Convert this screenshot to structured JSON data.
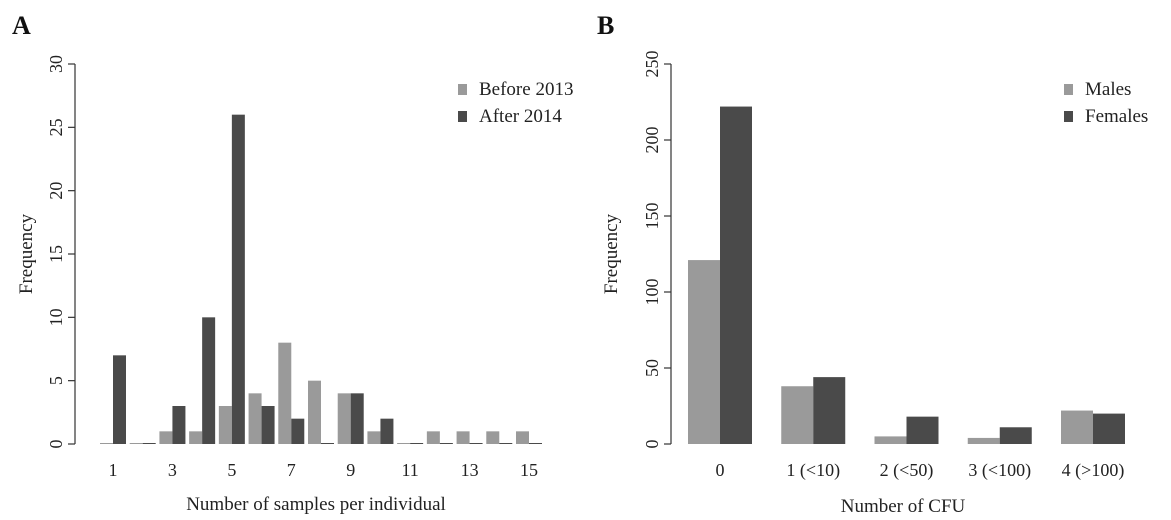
{
  "chart_data": [
    {
      "panel": "A",
      "type": "bar",
      "xlabel": "Number of samples per individual",
      "ylabel": "Frequency",
      "ylim": [
        0,
        30
      ],
      "yticks": [
        0,
        5,
        10,
        15,
        20,
        25,
        30
      ],
      "categories": [
        "1",
        "2",
        "3",
        "4",
        "5",
        "6",
        "7",
        "8",
        "9",
        "10",
        "11",
        "12",
        "13",
        "14",
        "15"
      ],
      "xtick_labels": [
        "1",
        "",
        "3",
        "",
        "5",
        "",
        "7",
        "",
        "9",
        "",
        "11",
        "",
        "13",
        "",
        "15"
      ],
      "series": [
        {
          "name": "Before 2013",
          "color": "#9a9a9a",
          "values": [
            0,
            0,
            1,
            1,
            3,
            4,
            8,
            5,
            4,
            1,
            0,
            1,
            1,
            1,
            1
          ]
        },
        {
          "name": "After 2014",
          "color": "#4a4a4a",
          "values": [
            7,
            0,
            3,
            10,
            26,
            3,
            2,
            0,
            4,
            2,
            0,
            0,
            0,
            0,
            0
          ]
        }
      ],
      "legend": "top-right",
      "grid": false
    },
    {
      "panel": "B",
      "type": "bar",
      "xlabel": "Number of CFU",
      "ylabel": "Frequency",
      "ylim": [
        0,
        250
      ],
      "yticks": [
        0,
        50,
        100,
        150,
        200,
        250
      ],
      "categories": [
        "0",
        "1 (<10)",
        "2 (<50)",
        "3 (<100)",
        "4 (>100)"
      ],
      "xtick_labels": [
        "0",
        "1 (<10)",
        "2 (<50)",
        "3 (<100)",
        "4 (>100)"
      ],
      "series": [
        {
          "name": "Males",
          "color": "#9a9a9a",
          "values": [
            121,
            38,
            5,
            4,
            22
          ]
        },
        {
          "name": "Females",
          "color": "#4a4a4a",
          "values": [
            222,
            44,
            18,
            11,
            20
          ]
        }
      ],
      "legend": "top-right",
      "grid": false
    }
  ]
}
